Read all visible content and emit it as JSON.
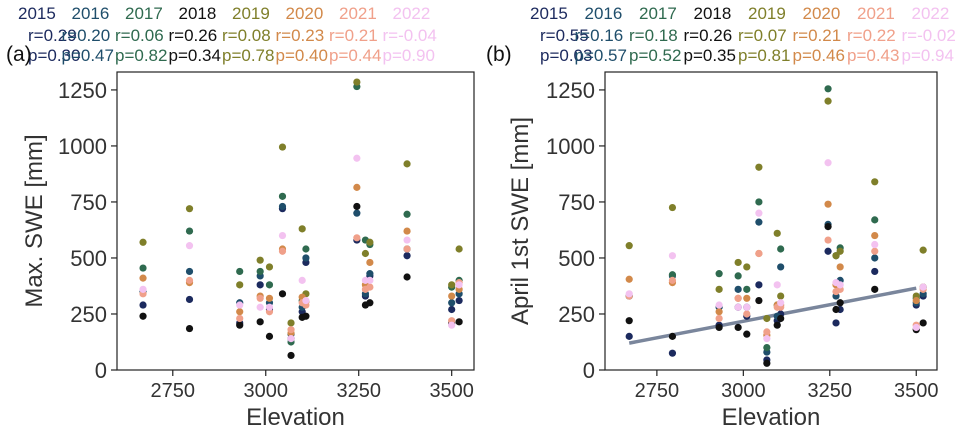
{
  "colors": {
    "2015": "#1c2a5e",
    "2016": "#1f4e6b",
    "2017": "#2f6a4f",
    "2018": "#111111",
    "2019": "#7f7f2a",
    "2020": "#d2894a",
    "2021": "#f0a08a",
    "2022": "#f3c2f0"
  },
  "chart_data": [
    {
      "type": "scatter",
      "panel_label": "(a)",
      "xlabel": "Elevation",
      "ylabel": "Max. SWE [mm]",
      "xlim": [
        2600,
        3560
      ],
      "ylim": [
        0,
        1330
      ],
      "xticks": [
        2750,
        3000,
        3250,
        3500
      ],
      "yticks": [
        0,
        250,
        500,
        750,
        1000,
        1250
      ],
      "legend": [
        {
          "year": "2015",
          "r": "r=0.29",
          "p": "p=0.30"
        },
        {
          "year": "2016",
          "r": "r=0.20",
          "p": "p=0.47"
        },
        {
          "year": "2017",
          "r": "r=0.06",
          "p": "p=0.82"
        },
        {
          "year": "2018",
          "r": "r=0.26",
          "p": "p=0.34"
        },
        {
          "year": "2019",
          "r": "r=0.08",
          "p": "p=0.78"
        },
        {
          "year": "2020",
          "r": "r=0.23",
          "p": "p=0.40"
        },
        {
          "year": "2021",
          "r": "r=0.21",
          "p": "p=0.44"
        },
        {
          "year": "2022",
          "r": "r=-0.04",
          "p": "p=0.90"
        }
      ],
      "x": [
        2670,
        2795,
        2930,
        2985,
        3010,
        3045,
        3068,
        3098,
        3108,
        3245,
        3268,
        3280,
        3380,
        3500,
        3520
      ],
      "series": [
        {
          "year": "2015",
          "values": [
            290,
            315,
            210,
            380,
            270,
            720,
            140,
            260,
            480,
            580,
            330,
            420,
            510,
            270,
            310
          ]
        },
        {
          "year": "2016",
          "values": [
            350,
            440,
            300,
            420,
            300,
            730,
            160,
            280,
            500,
            700,
            340,
            430,
            540,
            300,
            340
          ]
        },
        {
          "year": "2017",
          "values": [
            455,
            620,
            440,
            440,
            380,
            775,
            125,
            310,
            540,
            1265,
            580,
            560,
            695,
            370,
            400
          ]
        },
        {
          "year": "2018",
          "values": [
            240,
            185,
            200,
            215,
            150,
            340,
            65,
            235,
            240,
            730,
            290,
            300,
            415,
            210,
            215
          ]
        },
        {
          "year": "2019",
          "values": [
            570,
            720,
            380,
            490,
            460,
            995,
            210,
            630,
            340,
            1285,
            520,
            570,
            920,
            380,
            540
          ]
        },
        {
          "year": "2020",
          "values": [
            410,
            390,
            260,
            330,
            320,
            540,
            165,
            325,
            305,
            815,
            380,
            480,
            620,
            330,
            360
          ]
        },
        {
          "year": "2021",
          "values": [
            340,
            400,
            230,
            320,
            260,
            530,
            180,
            300,
            290,
            590,
            360,
            370,
            540,
            220,
            390
          ]
        },
        {
          "year": "2022",
          "values": [
            360,
            555,
            290,
            280,
            280,
            600,
            140,
            400,
            310,
            945,
            400,
            400,
            580,
            200,
            380
          ]
        }
      ]
    },
    {
      "type": "scatter",
      "panel_label": "(b)",
      "xlabel": "Elevation",
      "ylabel": "April 1st SWE [mm]",
      "xlim": [
        2600,
        3560
      ],
      "ylim": [
        0,
        1330
      ],
      "xticks": [
        2750,
        3000,
        3250,
        3500
      ],
      "yticks": [
        0,
        250,
        500,
        750,
        1000,
        1250
      ],
      "legend": [
        {
          "year": "2015",
          "r": "r=0.55",
          "p": "p=0.03"
        },
        {
          "year": "2016",
          "r": "r=0.16",
          "p": "p=0.57"
        },
        {
          "year": "2017",
          "r": "r=0.18",
          "p": "p=0.52"
        },
        {
          "year": "2018",
          "r": "r=0.26",
          "p": "p=0.35"
        },
        {
          "year": "2019",
          "r": "r=0.07",
          "p": "p=0.81"
        },
        {
          "year": "2020",
          "r": "r=0.21",
          "p": "p=0.46"
        },
        {
          "year": "2021",
          "r": "r=0.22",
          "p": "p=0.43"
        },
        {
          "year": "2022",
          "r": "r=-0.02",
          "p": "p=0.94"
        }
      ],
      "trendline": {
        "x": [
          2670,
          3500
        ],
        "y": [
          120,
          365
        ],
        "color": "#7a869c"
      },
      "x": [
        2670,
        2795,
        2930,
        2985,
        3010,
        3045,
        3068,
        3098,
        3108,
        3245,
        3268,
        3280,
        3380,
        3500,
        3520
      ],
      "series": [
        {
          "year": "2015",
          "values": [
            150,
            75,
            200,
            280,
            240,
            380,
            45,
            220,
            250,
            530,
            210,
            270,
            440,
            290,
            330
          ]
        },
        {
          "year": "2016",
          "values": [
            330,
            420,
            280,
            360,
            280,
            660,
            80,
            240,
            460,
            650,
            330,
            400,
            500,
            300,
            340
          ]
        },
        {
          "year": "2017",
          "values": [
            330,
            425,
            430,
            420,
            360,
            750,
            100,
            290,
            540,
            1255,
            510,
            545,
            670,
            320,
            370
          ]
        },
        {
          "year": "2018",
          "values": [
            220,
            150,
            190,
            190,
            160,
            310,
            30,
            200,
            230,
            640,
            270,
            300,
            360,
            180,
            210
          ]
        },
        {
          "year": "2019",
          "values": [
            555,
            725,
            360,
            480,
            460,
            905,
            230,
            610,
            330,
            1200,
            510,
            530,
            840,
            330,
            535
          ]
        },
        {
          "year": "2020",
          "values": [
            405,
            390,
            260,
            320,
            320,
            520,
            155,
            290,
            290,
            740,
            380,
            460,
            600,
            310,
            370
          ]
        },
        {
          "year": "2021",
          "values": [
            330,
            400,
            230,
            320,
            250,
            520,
            170,
            280,
            280,
            580,
            350,
            360,
            530,
            200,
            360
          ]
        },
        {
          "year": "2022",
          "values": [
            340,
            510,
            290,
            280,
            280,
            700,
            140,
            380,
            300,
            925,
            390,
            380,
            560,
            190,
            370
          ]
        }
      ]
    }
  ]
}
